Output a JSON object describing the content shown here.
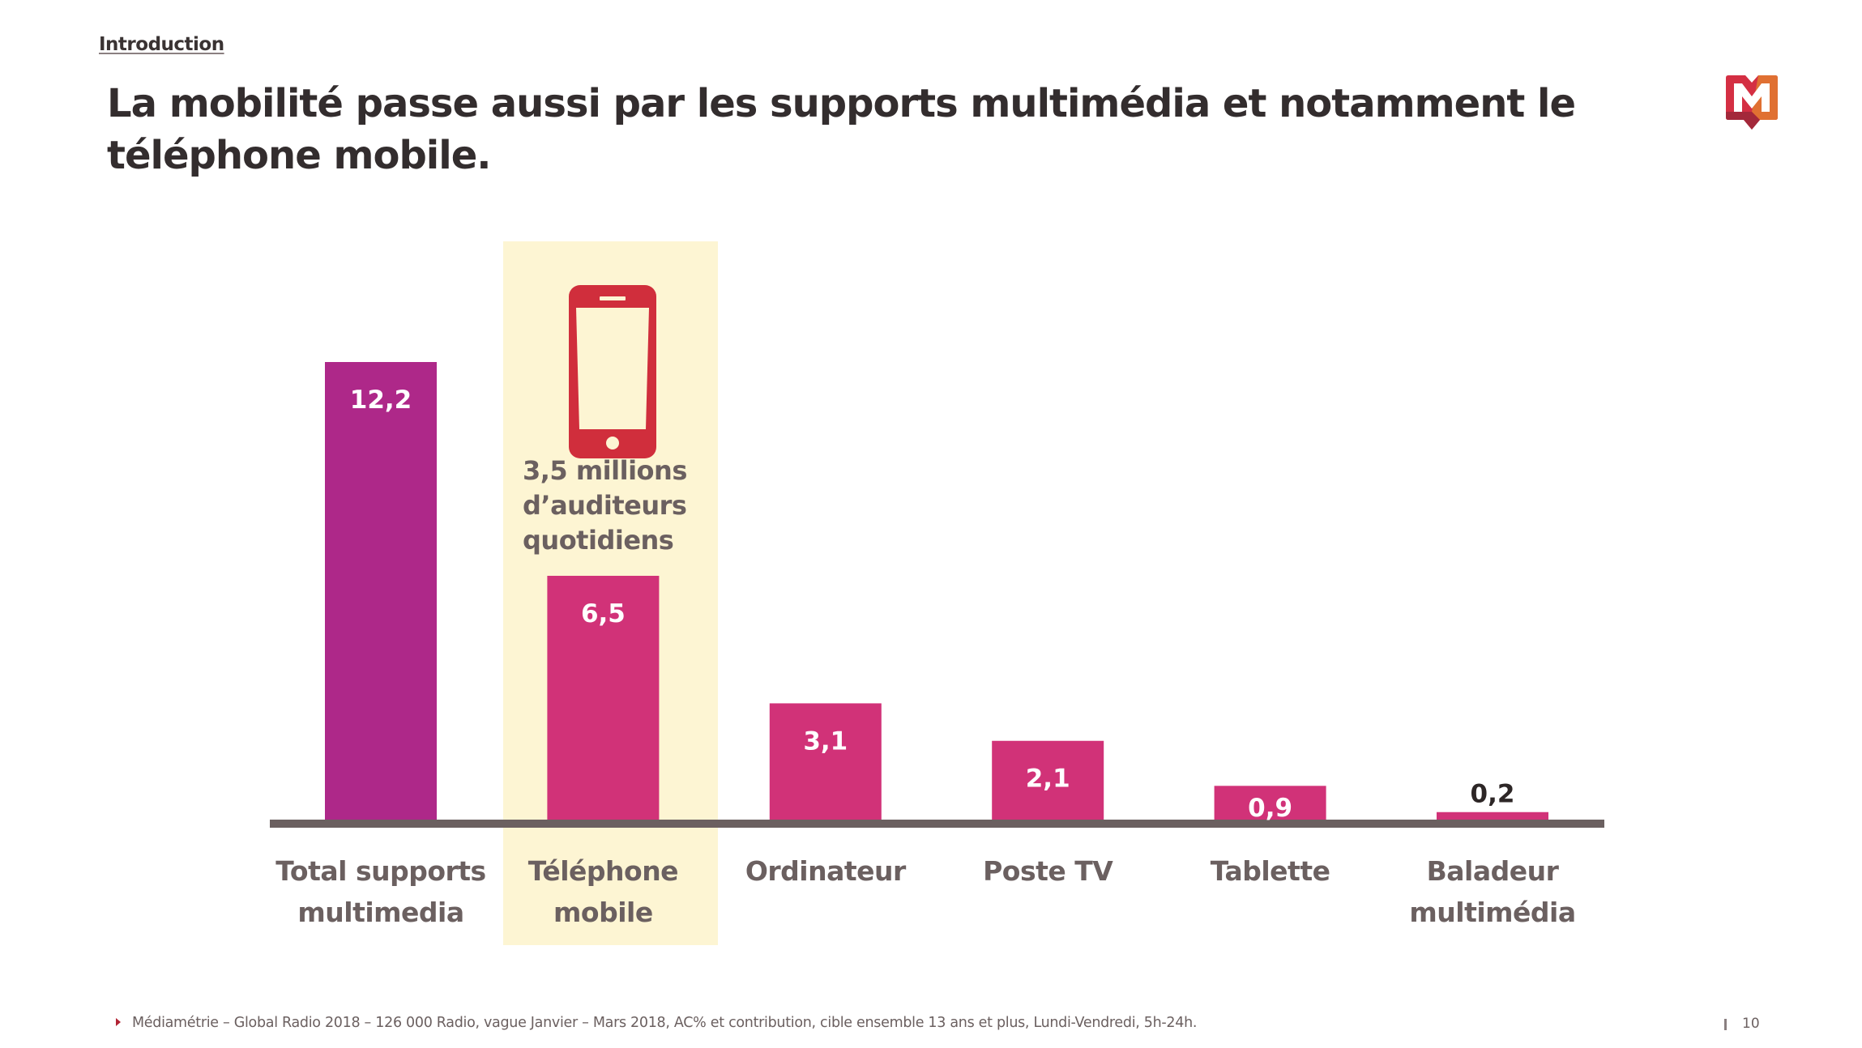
{
  "header": {
    "section": "Introduction",
    "title_line1": "La mobilité passe aussi par les supports multimédia et notamment le",
    "title_line2": "téléphone mobile."
  },
  "logo": {
    "icon": "mediametrie-m-logo-icon",
    "colors": [
      "#d42f43",
      "#a3283a",
      "#e07032"
    ]
  },
  "highlight": {
    "category": "Téléphone mobile",
    "icon": "smartphone-icon",
    "icon_color": "#d02e3c",
    "background": "#fdf5d3",
    "annotation_lines": [
      "3,5 millions",
      "d’auditeurs",
      "quotidiens"
    ]
  },
  "chart_data": {
    "type": "bar",
    "title": "La mobilité passe aussi par les supports multimédia et notamment le téléphone mobile.",
    "xlabel": "",
    "ylabel": "",
    "ylim": [
      0,
      12.2
    ],
    "grid": false,
    "legend": "none",
    "categories": [
      [
        "Total supports",
        "multimedia"
      ],
      [
        "Téléphone",
        "mobile"
      ],
      [
        "Ordinateur"
      ],
      [
        "Poste TV"
      ],
      [
        "Tablette"
      ],
      [
        "Baladeur",
        "multimédia"
      ]
    ],
    "values": [
      12.2,
      6.5,
      3.1,
      2.1,
      0.9,
      0.2
    ],
    "value_labels": [
      "12,2",
      "6,5",
      "3,1",
      "2,1",
      "0,9",
      "0,2"
    ],
    "bar_colors": [
      "#ae2889",
      "#d13278",
      "#d13278",
      "#d13278",
      "#d13278",
      "#d13278"
    ],
    "axis_color": "#6b6060",
    "label_color": "#6b6060"
  },
  "footer": {
    "source": "Médiamétrie – Global Radio 2018 – 126 000 Radio, vague Janvier – Mars 2018, AC% et contribution, cible ensemble 13 ans et plus, Lundi-Vendredi, 5h-24h.",
    "page_number": "10"
  }
}
